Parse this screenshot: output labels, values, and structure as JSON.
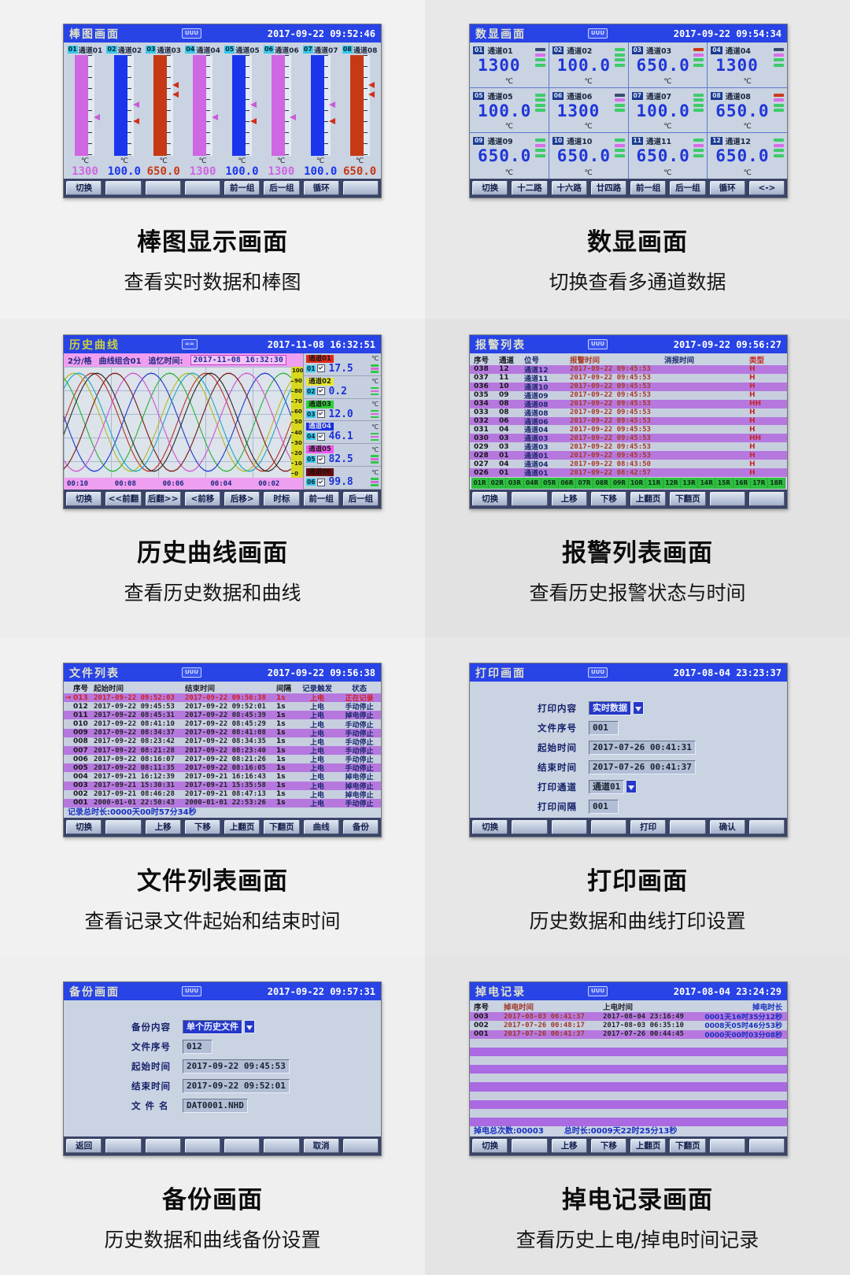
{
  "accent_colors": {
    "titlebar_blue": "#2843e6",
    "row_violet": "#b678de",
    "row_light": "#c7cfdf",
    "value_blue": "#2036d8",
    "alarm_red": "#c22828"
  },
  "bar_panel": {
    "title": "棒图画面",
    "icon": "UUU",
    "datetime": "2017-09-22 09:52:46",
    "unit": "℃",
    "channels": [
      {
        "num": "01",
        "name": "通道01",
        "value": "1300",
        "color": "#cf66e2",
        "m1c": "#c85ad8",
        "m1t": "58%",
        "m2c": "transparent",
        "m2t": "0%"
      },
      {
        "num": "02",
        "name": "通道02",
        "value": "100.0",
        "color": "#1b35ed",
        "m1c": "#c85ad8",
        "m1t": "46%",
        "m2c": "#d03018",
        "m2t": "62%"
      },
      {
        "num": "03",
        "name": "通道03",
        "value": "650.0",
        "color": "#c63914",
        "m1c": "#d03018",
        "m1t": "26%",
        "m2c": "#d03018",
        "m2t": "36%"
      },
      {
        "num": "04",
        "name": "通道04",
        "value": "1300",
        "color": "#cf66e2",
        "m1c": "#c85ad8",
        "m1t": "58%",
        "m2c": "transparent",
        "m2t": "0%"
      },
      {
        "num": "05",
        "name": "通道05",
        "value": "100.0",
        "color": "#1b35ed",
        "m1c": "#c85ad8",
        "m1t": "46%",
        "m2c": "#d03018",
        "m2t": "62%"
      },
      {
        "num": "06",
        "name": "通道06",
        "value": "1300",
        "color": "#cf66e2",
        "m1c": "#c85ad8",
        "m1t": "58%",
        "m2c": "transparent",
        "m2t": "0%"
      },
      {
        "num": "07",
        "name": "通道07",
        "value": "100.0",
        "color": "#1b35ed",
        "m1c": "#c85ad8",
        "m1t": "46%",
        "m2c": "#d03018",
        "m2t": "62%"
      },
      {
        "num": "08",
        "name": "通道08",
        "value": "650.0",
        "color": "#c63914",
        "m1c": "#d03018",
        "m1t": "26%",
        "m2c": "#d03018",
        "m2t": "36%"
      }
    ],
    "buttons": [
      "切换",
      "",
      "",
      "",
      "前一组",
      "后一组",
      "循环",
      ""
    ],
    "caption": {
      "title": "棒图显示画面",
      "sub": "查看实时数据和棒图"
    }
  },
  "digital_panel": {
    "title": "数显画面",
    "icon": "UUU",
    "datetime": "2017-09-22 09:54:34",
    "unit": "℃",
    "cells": [
      {
        "num": "01",
        "name": "通道01",
        "value": "1300",
        "ind": [
          "#3a4a72",
          "#d86ee8",
          "#3ecb6a",
          "#3ecb6a"
        ]
      },
      {
        "num": "02",
        "name": "通道02",
        "value": "100.0",
        "ind": [
          "#3ecb6a",
          "#3ecb6a",
          "#3ecb6a",
          "#3ecb6a"
        ]
      },
      {
        "num": "03",
        "name": "通道03",
        "value": "650.0",
        "ind": [
          "#cc3a18",
          "#d86ee8",
          "#3ecb6a",
          "#3ecb6a"
        ]
      },
      {
        "num": "04",
        "name": "通道04",
        "value": "1300",
        "ind": [
          "#3a4a72",
          "#d86ee8",
          "#3ecb6a",
          "#3ecb6a"
        ]
      },
      {
        "num": "05",
        "name": "通道05",
        "value": "100.0",
        "ind": [
          "#3ecb6a",
          "#3ecb6a",
          "#3ecb6a",
          "#3ecb6a"
        ]
      },
      {
        "num": "06",
        "name": "通道06",
        "value": "1300",
        "ind": [
          "#3a4a72",
          "#d86ee8",
          "#3ecb6a",
          "#3ecb6a"
        ]
      },
      {
        "num": "07",
        "name": "通道07",
        "value": "100.0",
        "ind": [
          "#3ecb6a",
          "#3ecb6a",
          "#3ecb6a",
          "#3ecb6a"
        ]
      },
      {
        "num": "08",
        "name": "通道08",
        "value": "650.0",
        "ind": [
          "#cc3a18",
          "#d86ee8",
          "#3ecb6a",
          "#3ecb6a"
        ]
      },
      {
        "num": "09",
        "name": "通道09",
        "value": "650.0",
        "ind": [
          "#3ecb6a",
          "#d86ee8",
          "#3ecb6a",
          "#3ecb6a"
        ]
      },
      {
        "num": "10",
        "name": "通道10",
        "value": "650.0",
        "ind": [
          "#3ecb6a",
          "#d86ee8",
          "#3ecb6a",
          "#3ecb6a"
        ]
      },
      {
        "num": "11",
        "name": "通道11",
        "value": "650.0",
        "ind": [
          "#3ecb6a",
          "#d86ee8",
          "#3ecb6a",
          "#3ecb6a"
        ]
      },
      {
        "num": "12",
        "name": "通道12",
        "value": "650.0",
        "ind": [
          "#3ecb6a",
          "#d86ee8",
          "#3ecb6a",
          "#3ecb6a"
        ]
      }
    ],
    "buttons": [
      "切换",
      "十二路",
      "十六路",
      "廿四路",
      "前一组",
      "后一组",
      "循环",
      "<->"
    ],
    "caption": {
      "title": "数显画面",
      "sub": "切换查看多通道数据"
    }
  },
  "history_panel": {
    "title": "历史曲线",
    "icon": "≈≈",
    "datetime": "2017-11-08 16:32:51",
    "unit": "℃",
    "info": {
      "scale": "2分/格",
      "group": "曲线组合01",
      "recall_label": "追忆时间:",
      "recall_time": "2017-11-08 16:32:30"
    },
    "axis_ticks": [
      "100",
      "90",
      "80",
      "70",
      "60",
      "50",
      "40",
      "30",
      "20",
      "10",
      "0"
    ],
    "time_labels": [
      "00:10",
      "00:08",
      "00:06",
      "00:04",
      "00:02"
    ],
    "curve_colors": [
      "#c03020",
      "#b8b81e",
      "#28b038",
      "#2038d0",
      "#d050d0",
      "#7a1818",
      "#282828",
      "#20a8c0"
    ],
    "channels": [
      {
        "num": "01",
        "name": "通道01",
        "value": "17.5",
        "color": "#e02818",
        "text": "#1a1a1a"
      },
      {
        "num": "02",
        "name": "通道02",
        "value": "0.2",
        "color": "#e8e832",
        "text": "#1a1a1a"
      },
      {
        "num": "03",
        "name": "通道03",
        "value": "12.0",
        "color": "#2ed038",
        "text": "#1a1a1a"
      },
      {
        "num": "04",
        "name": "通道04",
        "value": "46.1",
        "color": "#1830e0",
        "text": "#d8d8e8"
      },
      {
        "num": "05",
        "name": "通道05",
        "value": "82.5",
        "color": "#ee58ee",
        "text": "#1a1a1a"
      },
      {
        "num": "06",
        "name": "通道06",
        "value": "99.8",
        "color": "#681010",
        "text": "#2a0c0c"
      }
    ],
    "buttons": [
      "切换",
      "<<前翻",
      "后翻>>",
      "<前移",
      "后移>",
      "时标",
      "前一组",
      "后一组"
    ],
    "caption": {
      "title": "历史曲线画面",
      "sub": "查看历史数据和曲线"
    }
  },
  "alarm_panel": {
    "title": "报警列表",
    "icon": "UUU",
    "datetime": "2017-09-22 09:56:27",
    "headers": [
      "序号",
      "通道",
      "位号",
      "报警时间",
      "消报时间",
      "类型"
    ],
    "rows": [
      {
        "seq": "038",
        "ch": "12",
        "tag": "通道12",
        "alarm_time": "2017-09-22 09:45:53",
        "clear_time": "",
        "type": "H"
      },
      {
        "seq": "037",
        "ch": "11",
        "tag": "通道11",
        "alarm_time": "2017-09-22 09:45:53",
        "clear_time": "",
        "type": "H"
      },
      {
        "seq": "036",
        "ch": "10",
        "tag": "通道10",
        "alarm_time": "2017-09-22 09:45:53",
        "clear_time": "",
        "type": "H"
      },
      {
        "seq": "035",
        "ch": "09",
        "tag": "通道09",
        "alarm_time": "2017-09-22 09:45:53",
        "clear_time": "",
        "type": "H"
      },
      {
        "seq": "034",
        "ch": "08",
        "tag": "通道08",
        "alarm_time": "2017-09-22 09:45:53",
        "clear_time": "",
        "type": "HH"
      },
      {
        "seq": "033",
        "ch": "08",
        "tag": "通道08",
        "alarm_time": "2017-09-22 09:45:53",
        "clear_time": "",
        "type": "H"
      },
      {
        "seq": "032",
        "ch": "06",
        "tag": "通道06",
        "alarm_time": "2017-09-22 09:45:53",
        "clear_time": "",
        "type": "H"
      },
      {
        "seq": "031",
        "ch": "04",
        "tag": "通道04",
        "alarm_time": "2017-09-22 09:45:53",
        "clear_time": "",
        "type": "H"
      },
      {
        "seq": "030",
        "ch": "03",
        "tag": "通道03",
        "alarm_time": "2017-09-22 09:45:53",
        "clear_time": "",
        "type": "HH"
      },
      {
        "seq": "029",
        "ch": "03",
        "tag": "通道03",
        "alarm_time": "2017-09-22 09:45:53",
        "clear_time": "",
        "type": "H"
      },
      {
        "seq": "028",
        "ch": "01",
        "tag": "通道01",
        "alarm_time": "2017-09-22 09:45:53",
        "clear_time": "",
        "type": "H"
      },
      {
        "seq": "027",
        "ch": "04",
        "tag": "通道04",
        "alarm_time": "2017-09-22 08:43:50",
        "clear_time": "",
        "type": "H"
      },
      {
        "seq": "026",
        "ch": "01",
        "tag": "通道01",
        "alarm_time": "2017-09-22 08:42:57",
        "clear_time": "",
        "type": "H"
      }
    ],
    "relays": [
      "01R",
      "02R",
      "03R",
      "04R",
      "05R",
      "06R",
      "07R",
      "08R",
      "09R",
      "10R",
      "11R",
      "12R",
      "13R",
      "14R",
      "15R",
      "16R",
      "17R",
      "18R"
    ],
    "buttons": [
      "切换",
      "",
      "上移",
      "下移",
      "上翻页",
      "下翻页",
      "",
      ""
    ],
    "caption": {
      "title": "报警列表画面",
      "sub": "查看历史报警状态与时间"
    }
  },
  "file_panel": {
    "title": "文件列表",
    "icon": "UUU",
    "datetime": "2017-09-22 09:56:38",
    "headers": [
      "序号",
      "起始时间",
      "结束时间",
      "间隔",
      "记录触发",
      "状态"
    ],
    "rows": [
      {
        "marker": "→",
        "seq": "013",
        "start": "2017-09-22 09:52:03",
        "end": "2017-09-22 09:56:38",
        "interval": "1s",
        "trigger": "上电",
        "status": "正在记录",
        "active": true
      },
      {
        "marker": "",
        "seq": "012",
        "start": "2017-09-22 09:45:53",
        "end": "2017-09-22 09:52:01",
        "interval": "1s",
        "trigger": "上电",
        "status": "手动停止"
      },
      {
        "marker": "",
        "seq": "011",
        "start": "2017-09-22 08:45:31",
        "end": "2017-09-22 08:45:39",
        "interval": "1s",
        "trigger": "上电",
        "status": "掉电停止"
      },
      {
        "marker": "",
        "seq": "010",
        "start": "2017-09-22 08:41:10",
        "end": "2017-09-22 08:45:29",
        "interval": "1s",
        "trigger": "上电",
        "status": "手动停止"
      },
      {
        "marker": "",
        "seq": "009",
        "start": "2017-09-22 08:34:37",
        "end": "2017-09-22 08:41:08",
        "interval": "1s",
        "trigger": "上电",
        "status": "手动停止"
      },
      {
        "marker": "",
        "seq": "008",
        "start": "2017-09-22 08:23:42",
        "end": "2017-09-22 08:34:35",
        "interval": "1s",
        "trigger": "上电",
        "status": "手动停止"
      },
      {
        "marker": "",
        "seq": "007",
        "start": "2017-09-22 08:21:28",
        "end": "2017-09-22 08:23:40",
        "interval": "1s",
        "trigger": "上电",
        "status": "手动停止"
      },
      {
        "marker": "",
        "seq": "006",
        "start": "2017-09-22 08:16:07",
        "end": "2017-09-22 08:21:26",
        "interval": "1s",
        "trigger": "上电",
        "status": "手动停止"
      },
      {
        "marker": "",
        "seq": "005",
        "start": "2017-09-22 08:11:35",
        "end": "2017-09-22 08:16:05",
        "interval": "1s",
        "trigger": "上电",
        "status": "手动停止"
      },
      {
        "marker": "",
        "seq": "004",
        "start": "2017-09-21 16:12:39",
        "end": "2017-09-21 16:16:43",
        "interval": "1s",
        "trigger": "上电",
        "status": "掉电停止"
      },
      {
        "marker": "",
        "seq": "003",
        "start": "2017-09-21 15:30:31",
        "end": "2017-09-21 15:35:58",
        "interval": "1s",
        "trigger": "上电",
        "status": "掉电停止"
      },
      {
        "marker": "",
        "seq": "002",
        "start": "2017-09-21 08:46:28",
        "end": "2017-09-21 08:47:13",
        "interval": "1s",
        "trigger": "上电",
        "status": "掉电停止"
      },
      {
        "marker": "",
        "seq": "001",
        "start": "2000-01-01 22:50:43",
        "end": "2000-01-01 22:53:26",
        "interval": "1s",
        "trigger": "上电",
        "status": "手动停止"
      }
    ],
    "footer": "记录总时长:0000天00时57分34秒",
    "buttons": [
      "切换",
      "",
      "上移",
      "下移",
      "上翻页",
      "下翻页",
      "曲线",
      "备份"
    ],
    "caption": {
      "title": "文件列表画面",
      "sub": "查看记录文件起始和结束时间"
    }
  },
  "print_panel": {
    "title": "打印画面",
    "icon": "UUU",
    "datetime": "2017-08-04 23:23:37",
    "fields": [
      {
        "label": "打印内容",
        "value": "实时数据",
        "dropdown": true,
        "selected": true
      },
      {
        "label": "文件序号",
        "value": "001"
      },
      {
        "label": "起始时间",
        "value": "2017-07-26 00:41:31"
      },
      {
        "label": "结束时间",
        "value": "2017-07-26 00:41:37"
      },
      {
        "label": "打印通道",
        "value": "通道01",
        "dropdown": true
      },
      {
        "label": "打印间隔",
        "value": "001"
      }
    ],
    "buttons": [
      "切换",
      "",
      "",
      "",
      "打印",
      "",
      "确认",
      ""
    ],
    "caption": {
      "title": "打印画面",
      "sub": "历史数据和曲线打印设置"
    }
  },
  "backup_panel": {
    "title": "备份画面",
    "icon": "UUU",
    "datetime": "2017-09-22 09:57:31",
    "fields": [
      {
        "label": "备份内容",
        "value": "单个历史文件",
        "dropdown": true,
        "selected": true
      },
      {
        "label": "文件序号",
        "value": "012"
      },
      {
        "label": "起始时间",
        "value": "2017-09-22 09:45:53"
      },
      {
        "label": "结束时间",
        "value": "2017-09-22 09:52:01"
      },
      {
        "label": "文 件 名",
        "value": "DAT0001.NHD",
        "hilite": true
      }
    ],
    "buttons": [
      "返回",
      "",
      "",
      "",
      "",
      "",
      "取消",
      ""
    ],
    "caption": {
      "title": "备份画面",
      "sub": "历史数据和曲线备份设置"
    }
  },
  "poweroff_panel": {
    "title": "掉电记录",
    "icon": "UUU",
    "datetime": "2017-08-04 23:24:29",
    "headers": [
      "序号",
      "掉电时间",
      "上电时间",
      "掉电时长"
    ],
    "rows": [
      {
        "seq": "003",
        "off": "2017-08-03 06:41:37",
        "on": "2017-08-04 23:16:49",
        "duration": "0001天16时35分12秒"
      },
      {
        "seq": "002",
        "off": "2017-07-26 00:48:17",
        "on": "2017-08-03 06:35:10",
        "duration": "0008天05时46分53秒"
      },
      {
        "seq": "001",
        "off": "2017-07-26 00:41:37",
        "on": "2017-07-26 00:44:45",
        "duration": "0000天00时03分08秒"
      }
    ],
    "empty_rows": [
      "",
      "",
      "",
      "",
      "",
      "",
      "",
      "",
      "",
      ""
    ],
    "footer_left": "掉电总次数:00003",
    "footer_right": "总时长:0009天22时25分13秒",
    "buttons": [
      "切换",
      "",
      "上移",
      "下移",
      "上翻页",
      "下翻页",
      "",
      ""
    ],
    "caption": {
      "title": "掉电记录画面",
      "sub": "查看历史上电/掉电时间记录"
    }
  }
}
